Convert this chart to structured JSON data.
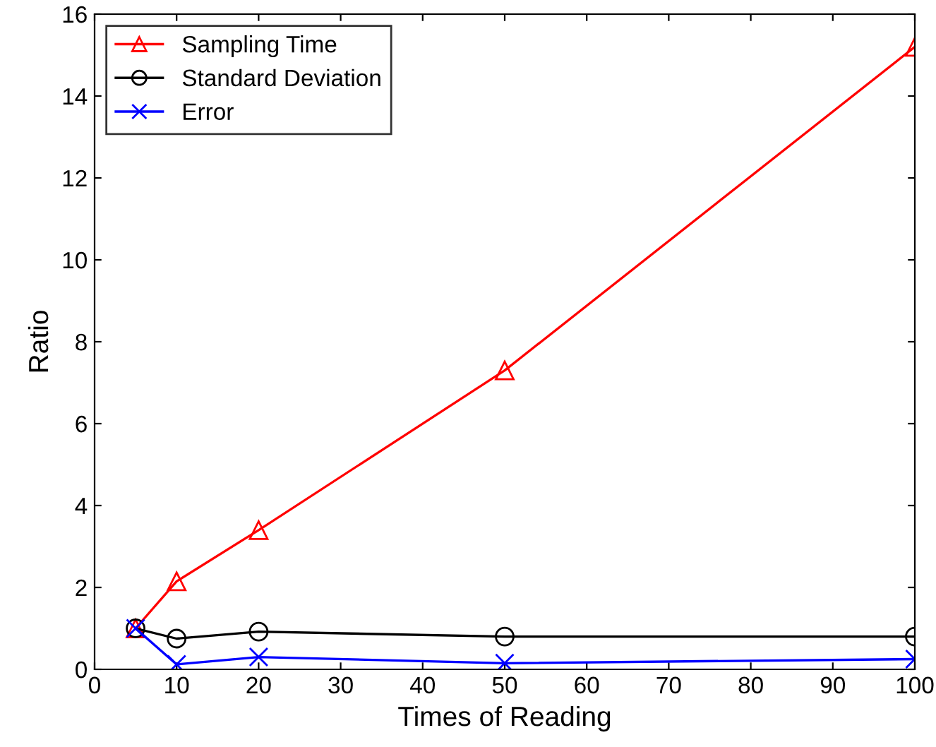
{
  "chart_data": {
    "type": "line",
    "xlabel": "Times of Reading",
    "ylabel": "Ratio",
    "x": [
      5,
      10,
      20,
      50,
      100
    ],
    "series": [
      {
        "name": "Sampling Time",
        "color": "#ff0000",
        "marker": "triangle",
        "values": [
          1.0,
          2.15,
          3.4,
          7.3,
          15.2
        ]
      },
      {
        "name": "Standard Deviation",
        "color": "#000000",
        "marker": "circle",
        "values": [
          1.0,
          0.75,
          0.92,
          0.8,
          0.8
        ]
      },
      {
        "name": "Error",
        "color": "#0000ff",
        "marker": "cross",
        "values": [
          1.0,
          0.12,
          0.3,
          0.15,
          0.25
        ]
      }
    ],
    "xlim": [
      0,
      100
    ],
    "xticks": [
      0,
      10,
      20,
      30,
      40,
      50,
      60,
      70,
      80,
      90,
      100
    ],
    "ylim": [
      0,
      16
    ],
    "yticks": [
      0,
      2,
      4,
      6,
      8,
      10,
      12,
      14,
      16
    ],
    "grid": false,
    "legend": "top left",
    "line_style": "solid"
  }
}
